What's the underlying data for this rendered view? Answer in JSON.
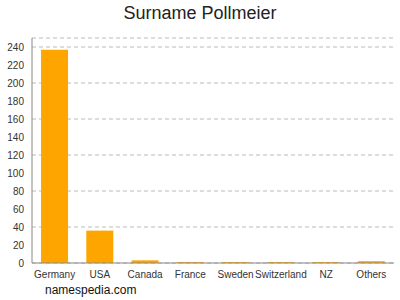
{
  "chart_data": {
    "type": "bar",
    "title": "Surname Pollmeier",
    "annotation": "namespedia.com",
    "categories": [
      "Germany",
      "USA",
      "Canada",
      "France",
      "Sweden",
      "Switzerland",
      "NZ",
      "Others"
    ],
    "values": [
      237,
      36,
      3,
      1,
      1,
      1,
      1,
      2
    ],
    "color": "#ffa500",
    "ylim": [
      0,
      250
    ],
    "yticks": [
      0,
      20,
      40,
      60,
      80,
      100,
      120,
      140,
      160,
      180,
      200,
      220,
      240
    ],
    "grid": true
  }
}
